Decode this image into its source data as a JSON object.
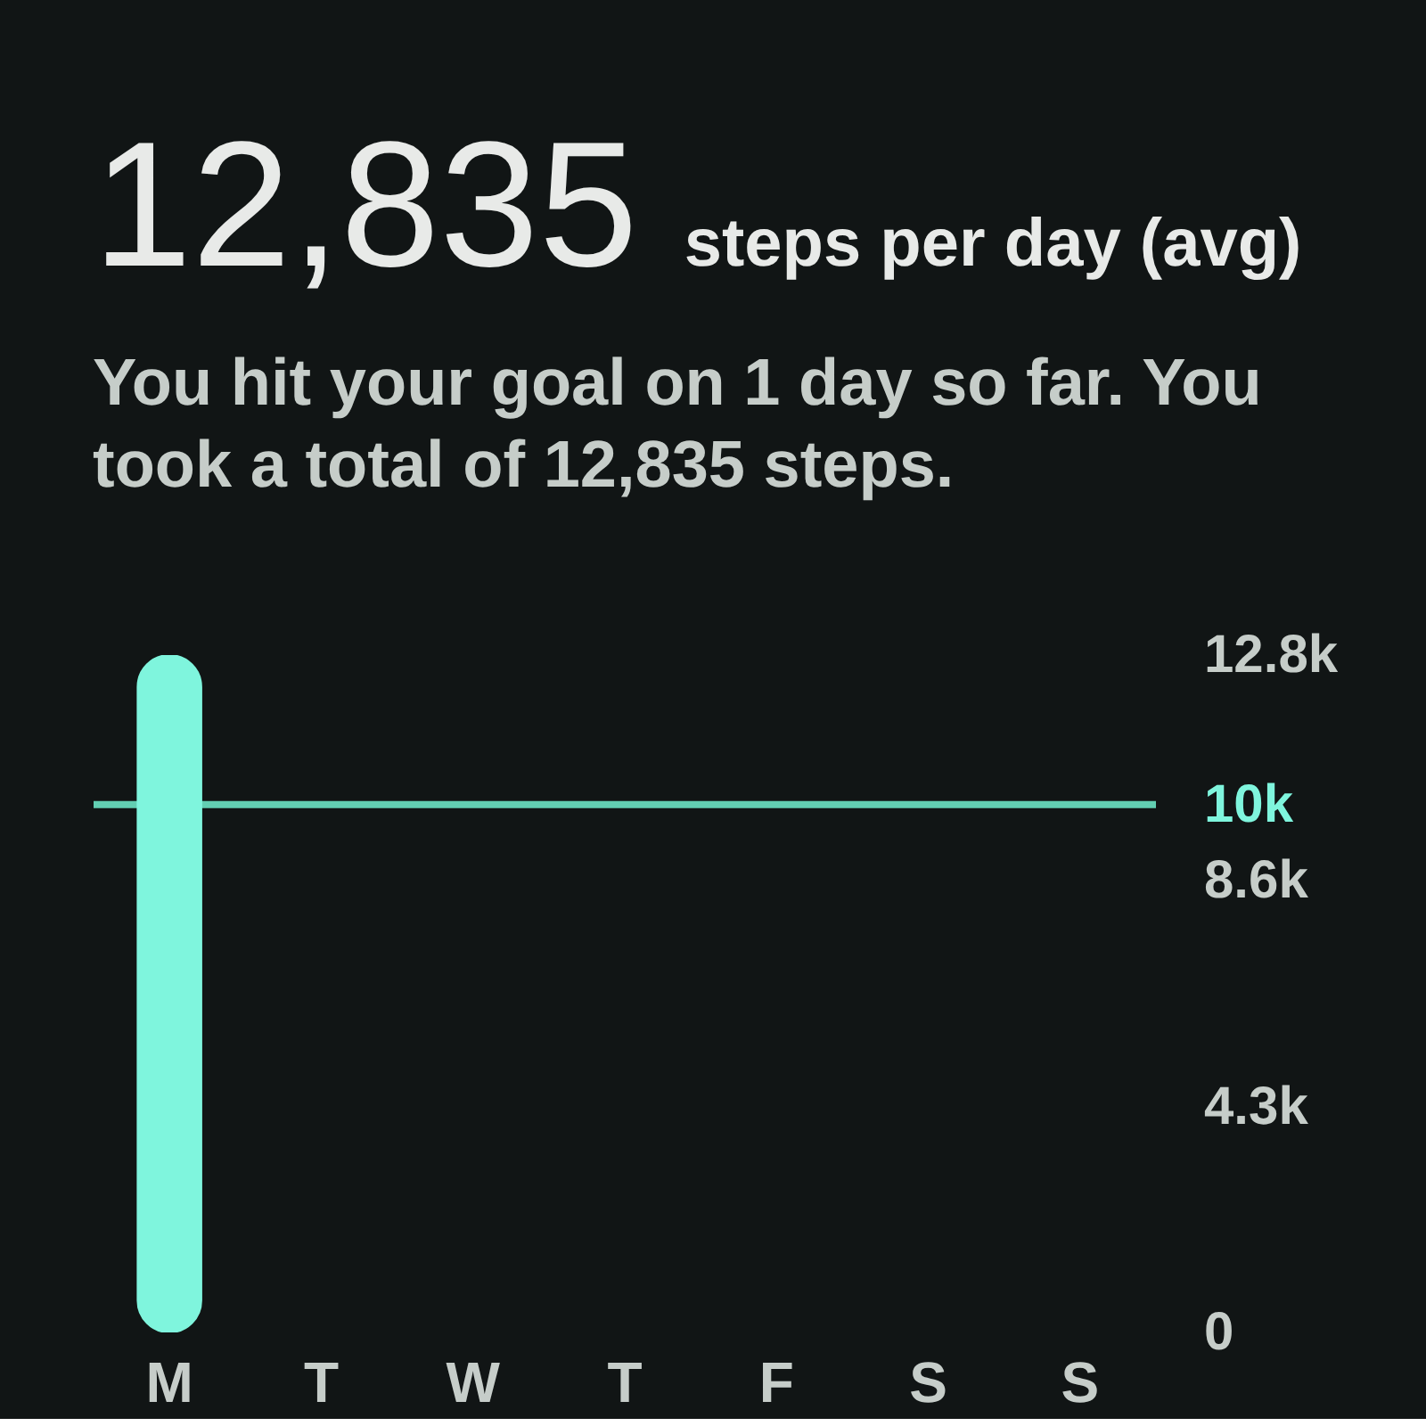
{
  "chart_data": {
    "type": "bar",
    "title": "12,835",
    "subtitle": "steps per day (avg)",
    "annotations": [
      "You hit your goal on 1 day so far. You took a total of 12,835 steps."
    ],
    "categories": [
      "M",
      "T",
      "W",
      "T",
      "F",
      "S",
      "S"
    ],
    "values": [
      12835,
      null,
      null,
      null,
      null,
      null,
      null
    ],
    "color": "#7ff5dd",
    "ylim": [
      0,
      12835
    ],
    "yticks": [
      0,
      {
        "value": 4278,
        "label": "4.3k"
      },
      {
        "value": 8557,
        "label": "8.6k"
      },
      {
        "value": 12835,
        "label": "12.8k"
      }
    ],
    "ref_lines": [
      {
        "axis": "y",
        "value": 10000,
        "label": "10k",
        "color": "#62cfb2"
      }
    ]
  }
}
